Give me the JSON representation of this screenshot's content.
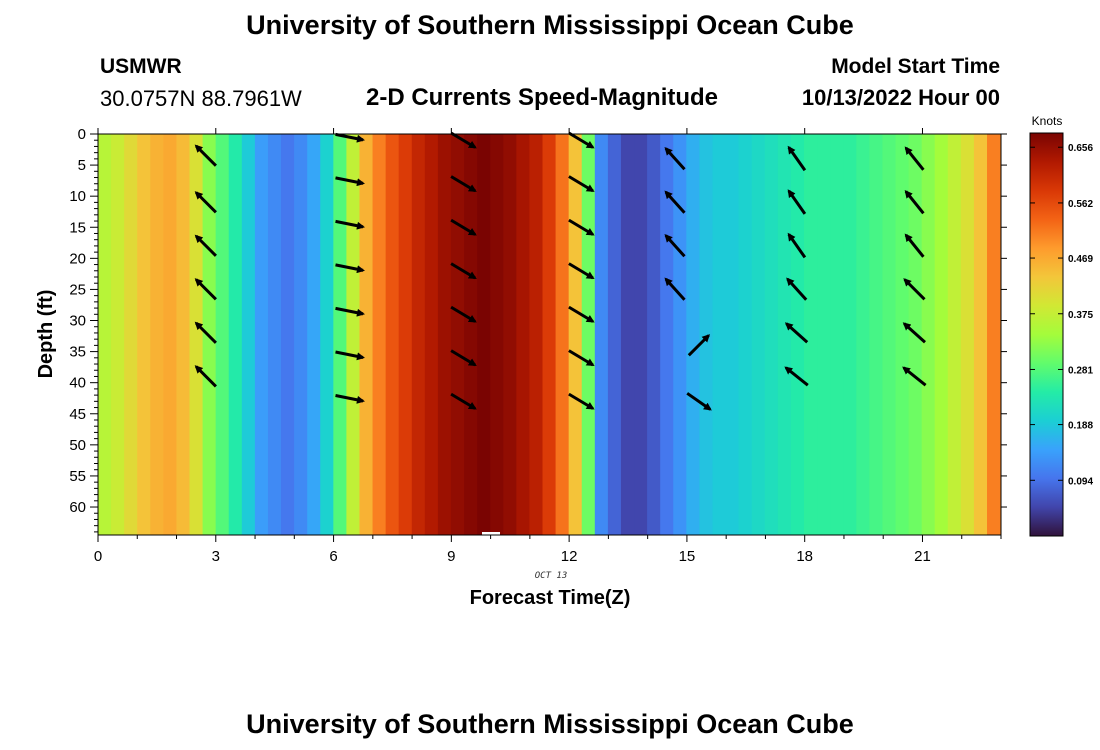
{
  "header": {
    "title": "University of Southern Mississippi Ocean Cube",
    "station_name": "USMWR",
    "station_coords": "30.0757N  88.7961W",
    "plot_title": "2-D Currents Speed-Magnitude",
    "start_label": "Model Start Time",
    "start_value": "10/13/2022 Hour 00"
  },
  "footer": {
    "title": "University of Southern Mississippi Ocean Cube"
  },
  "chart_data": {
    "type": "heatmap",
    "title": "2-D Currents Speed-Magnitude",
    "xlabel": "Forecast Time(Z)",
    "ylabel": "Depth (ft)",
    "date_label": "OCT 13",
    "xlim": [
      0,
      23
    ],
    "ylim": [
      0,
      64.5
    ],
    "x_ticks": [
      0,
      3,
      6,
      9,
      12,
      15,
      18,
      21
    ],
    "y_ticks": [
      0,
      5,
      10,
      15,
      20,
      25,
      30,
      35,
      40,
      45,
      50,
      55,
      60
    ],
    "y_inverted": true,
    "colorbar": {
      "title": "Knots",
      "range": [
        0,
        0.68
      ],
      "ticks": [
        0.094,
        0.188,
        0.281,
        0.375,
        0.469,
        0.562,
        0.656
      ],
      "tick_labels": [
        "0.094",
        "0.188",
        "0.281",
        "0.375",
        "0.469",
        "0.562",
        "0.656"
      ],
      "colors": [
        "#30123b",
        "#4145ab",
        "#4675ed",
        "#39a2fc",
        "#1bcfd4",
        "#24eca6",
        "#61fc6c",
        "#a4fc3b",
        "#d1e834",
        "#f3c63a",
        "#fe9b2d",
        "#f36315",
        "#d93806",
        "#b11901",
        "#7a0402"
      ]
    },
    "speed_knots_by_hour": [
      0.36,
      0.38,
      0.41,
      0.44,
      0.46,
      0.47,
      0.45,
      0.4,
      0.32,
      0.28,
      0.24,
      0.19,
      0.14,
      0.12,
      0.1,
      0.12,
      0.15,
      0.2,
      0.28,
      0.37,
      0.46,
      0.51,
      0.55,
      0.58,
      0.61,
      0.63,
      0.65,
      0.66,
      0.67,
      0.68,
      0.67,
      0.66,
      0.64,
      0.62,
      0.58,
      0.52,
      0.44,
      0.3,
      0.12,
      0.08,
      0.05,
      0.05,
      0.07,
      0.1,
      0.13,
      0.16,
      0.18,
      0.19,
      0.19,
      0.2,
      0.21,
      0.22,
      0.23,
      0.24,
      0.25,
      0.25,
      0.25,
      0.25,
      0.26,
      0.27,
      0.28,
      0.29,
      0.3,
      0.32,
      0.34,
      0.37,
      0.4,
      0.44,
      0.51
    ],
    "speed_x_step_hours": 0.333,
    "vectors": [
      {
        "time": 2.75,
        "depth": 3.5,
        "dx": -1,
        "dy": -1
      },
      {
        "time": 2.75,
        "depth": 11,
        "dx": -1,
        "dy": -1
      },
      {
        "time": 2.75,
        "depth": 18,
        "dx": -1,
        "dy": -1
      },
      {
        "time": 2.75,
        "depth": 25,
        "dx": -1,
        "dy": -1
      },
      {
        "time": 2.75,
        "depth": 32,
        "dx": -1,
        "dy": -1
      },
      {
        "time": 2.75,
        "depth": 39,
        "dx": -1,
        "dy": -1
      },
      {
        "time": 6.4,
        "depth": 0.5,
        "dx": 1,
        "dy": 0.2
      },
      {
        "time": 6.4,
        "depth": 7.5,
        "dx": 1,
        "dy": 0.2
      },
      {
        "time": 6.4,
        "depth": 14.5,
        "dx": 1,
        "dy": 0.2
      },
      {
        "time": 6.4,
        "depth": 21.5,
        "dx": 1,
        "dy": 0.2
      },
      {
        "time": 6.4,
        "depth": 28.5,
        "dx": 1,
        "dy": 0.2
      },
      {
        "time": 6.4,
        "depth": 35.5,
        "dx": 1,
        "dy": 0.2
      },
      {
        "time": 6.4,
        "depth": 42.5,
        "dx": 1,
        "dy": 0.2
      },
      {
        "time": 9.3,
        "depth": 1,
        "dx": 1,
        "dy": 0.6
      },
      {
        "time": 9.3,
        "depth": 8,
        "dx": 1,
        "dy": 0.6
      },
      {
        "time": 9.3,
        "depth": 15,
        "dx": 1,
        "dy": 0.6
      },
      {
        "time": 9.3,
        "depth": 22,
        "dx": 1,
        "dy": 0.6
      },
      {
        "time": 9.3,
        "depth": 29,
        "dx": 1,
        "dy": 0.6
      },
      {
        "time": 9.3,
        "depth": 36,
        "dx": 1,
        "dy": 0.6
      },
      {
        "time": 9.3,
        "depth": 43,
        "dx": 1,
        "dy": 0.6
      },
      {
        "time": 12.3,
        "depth": 1,
        "dx": 1,
        "dy": 0.6
      },
      {
        "time": 12.3,
        "depth": 8,
        "dx": 1,
        "dy": 0.6
      },
      {
        "time": 12.3,
        "depth": 15,
        "dx": 1,
        "dy": 0.6
      },
      {
        "time": 12.3,
        "depth": 22,
        "dx": 1,
        "dy": 0.6
      },
      {
        "time": 12.3,
        "depth": 29,
        "dx": 1,
        "dy": 0.6
      },
      {
        "time": 12.3,
        "depth": 36,
        "dx": 1,
        "dy": 0.6
      },
      {
        "time": 12.3,
        "depth": 43,
        "dx": 1,
        "dy": 0.6
      },
      {
        "time": 14.7,
        "depth": 4,
        "dx": -0.9,
        "dy": -1
      },
      {
        "time": 14.7,
        "depth": 11,
        "dx": -0.9,
        "dy": -1
      },
      {
        "time": 14.7,
        "depth": 18,
        "dx": -0.9,
        "dy": -1
      },
      {
        "time": 14.7,
        "depth": 25,
        "dx": -0.9,
        "dy": -1
      },
      {
        "time": 15.3,
        "depth": 34,
        "dx": 1,
        "dy": -1
      },
      {
        "time": 15.3,
        "depth": 43,
        "dx": 1,
        "dy": 0.7
      },
      {
        "time": 17.8,
        "depth": 4,
        "dx": -0.7,
        "dy": -1
      },
      {
        "time": 17.8,
        "depth": 11,
        "dx": -0.7,
        "dy": -1
      },
      {
        "time": 17.8,
        "depth": 18,
        "dx": -0.7,
        "dy": -1
      },
      {
        "time": 17.8,
        "depth": 25,
        "dx": -0.9,
        "dy": -1
      },
      {
        "time": 17.8,
        "depth": 32,
        "dx": -1,
        "dy": -0.9
      },
      {
        "time": 17.8,
        "depth": 39,
        "dx": -1,
        "dy": -0.8
      },
      {
        "time": 20.8,
        "depth": 4,
        "dx": -0.8,
        "dy": -1
      },
      {
        "time": 20.8,
        "depth": 11,
        "dx": -0.8,
        "dy": -1
      },
      {
        "time": 20.8,
        "depth": 18,
        "dx": -0.8,
        "dy": -1
      },
      {
        "time": 20.8,
        "depth": 25,
        "dx": -1,
        "dy": -1
      },
      {
        "time": 20.8,
        "depth": 32,
        "dx": -1,
        "dy": -0.9
      },
      {
        "time": 20.8,
        "depth": 39,
        "dx": -1,
        "dy": -0.8
      }
    ]
  }
}
